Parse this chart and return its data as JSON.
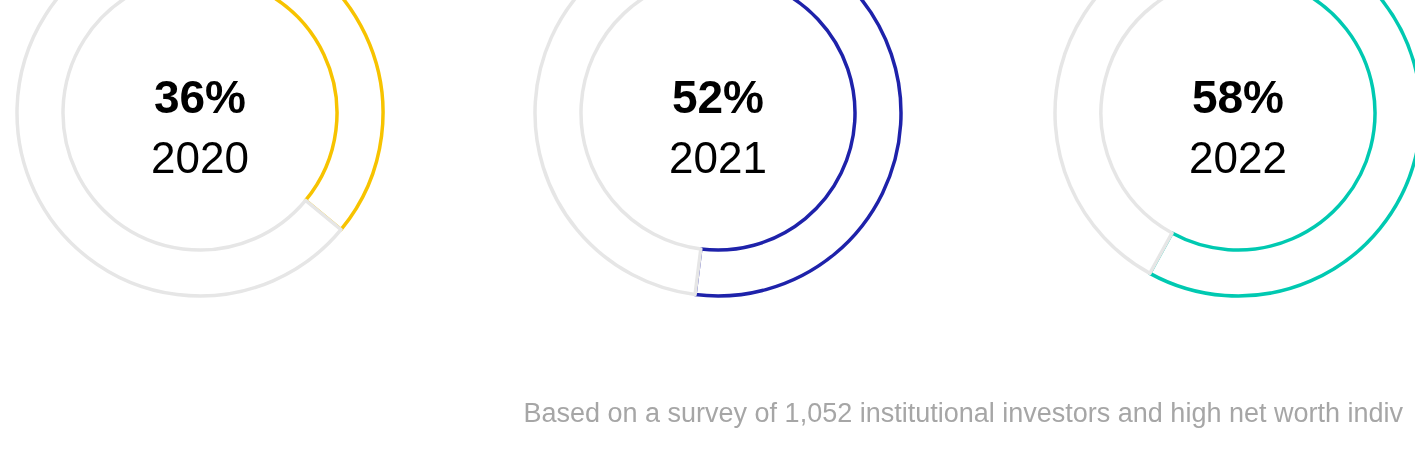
{
  "chart_data": [
    {
      "type": "donut",
      "title": "2020",
      "categories": [
        null,
        null
      ],
      "values": [
        36,
        64
      ],
      "colors": [
        "#f7c300",
        "#e6e6e6"
      ],
      "value_labels": [
        "36%",
        null
      ]
    },
    {
      "type": "donut",
      "title": "2021",
      "categories": [
        null,
        null
      ],
      "values": [
        52,
        48
      ],
      "colors": [
        "#1e22aa",
        "#e6e6e6"
      ],
      "value_labels": [
        "52%",
        null
      ]
    },
    {
      "type": "donut",
      "title": "2022",
      "categories": [
        null,
        null
      ],
      "values": [
        58,
        42
      ],
      "colors": [
        "#00c9b1",
        "#e6e6e6"
      ],
      "value_labels": [
        "58%",
        null
      ],
      "annotations": [
        "Based on a survey of 1,052 institutional investors and high net worth indiv"
      ]
    }
  ]
}
